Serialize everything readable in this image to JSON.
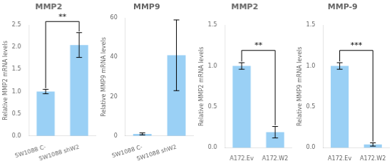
{
  "chart_data": [
    {
      "type": "bar",
      "title": "MMP2",
      "categories": [
        "SW1088 C-",
        "SW1088 shW2"
      ],
      "values": [
        1.0,
        2.05
      ],
      "errors": [
        0.05,
        0.28
      ],
      "ylabel": "Relative MMP2 mRNA levels",
      "ylim": [
        0,
        2.5
      ],
      "yticks": [
        {
          "value": 0,
          "label": "0.0"
        },
        0.5,
        {
          "value": 1,
          "label": "1.0"
        },
        1.5,
        {
          "value": 2,
          "label": "2.0"
        },
        2.5
      ],
      "annotations": [
        {
          "text": "**"
        }
      ],
      "grid": false,
      "legend": false
    },
    {
      "type": "bar",
      "title": "MMP9",
      "categories": [
        "SW1088 C-",
        "SW1088 shW2"
      ],
      "values": [
        1.0,
        41.0
      ],
      "errors": [
        0.5,
        18.0
      ],
      "ylabel": "Relative MMP9 mRNA levels",
      "ylim": [
        0,
        60
      ],
      "yticks": [
        0,
        20,
        40,
        60
      ],
      "grid": false,
      "legend": false
    },
    {
      "type": "bar",
      "title": "MMP2",
      "categories": [
        "A172.Ev",
        "A172.W2"
      ],
      "values": [
        1.0,
        0.19
      ],
      "errors": [
        0.04,
        0.07
      ],
      "ylabel": "Relative MMP2 mRNA levels",
      "ylim": [
        0,
        1.5
      ],
      "yticks": [
        {
          "value": 0,
          "label": "0.0"
        },
        0.5,
        {
          "value": 1,
          "label": "1.0"
        },
        1.5
      ],
      "annotations": [
        {
          "text": "**"
        }
      ],
      "grid": false,
      "legend": false
    },
    {
      "type": "bar",
      "title": "MMP-9",
      "categories": [
        "A172.Ev",
        "A172.W2"
      ],
      "values": [
        1.0,
        0.04
      ],
      "errors": [
        0.04,
        0.02
      ],
      "ylabel": "Relative MMP9 mRNA levels",
      "ylim": [
        0,
        1.5
      ],
      "yticks": [
        {
          "value": 0,
          "label": "0.0"
        },
        0.5,
        {
          "value": 1,
          "label": "1.0"
        },
        1.5
      ],
      "annotations": [
        {
          "text": "***"
        }
      ],
      "grid": false,
      "legend": false
    }
  ]
}
